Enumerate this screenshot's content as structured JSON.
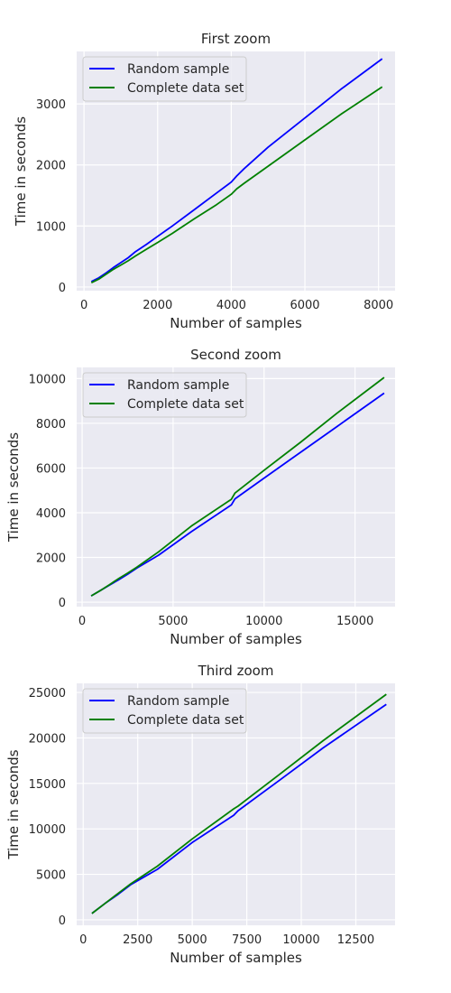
{
  "chart_data": [
    {
      "type": "line",
      "title": "First zoom",
      "xlabel": "Number of samples",
      "ylabel": "Time in seconds",
      "xlim": [
        -200,
        8450
      ],
      "ylim": [
        -60,
        3860
      ],
      "xticks": [
        0,
        2000,
        4000,
        6000,
        8000
      ],
      "yticks": [
        0,
        1000,
        2000,
        3000
      ],
      "grid": true,
      "legend_position": "top-left",
      "series": [
        {
          "name": "Random sample",
          "color": "#0000ff",
          "x": [
            200,
            400,
            600,
            800,
            1000,
            1200,
            1400,
            1700,
            2000,
            2400,
            3000,
            3600,
            4000,
            4150,
            4350,
            5000,
            6000,
            7000,
            8100
          ],
          "y": [
            90,
            150,
            230,
            320,
            400,
            480,
            580,
            700,
            830,
            1000,
            1270,
            1540,
            1720,
            1820,
            1940,
            2290,
            2770,
            3250,
            3740
          ]
        },
        {
          "name": "Complete data set",
          "color": "#008000",
          "x": [
            200,
            400,
            600,
            800,
            1000,
            1200,
            1400,
            1700,
            2000,
            2400,
            3000,
            3600,
            4000,
            4150,
            4350,
            5000,
            6000,
            7000,
            8100
          ],
          "y": [
            70,
            130,
            210,
            290,
            360,
            430,
            510,
            620,
            730,
            880,
            1120,
            1350,
            1520,
            1610,
            1700,
            1980,
            2410,
            2840,
            3280
          ]
        }
      ]
    },
    {
      "type": "line",
      "title": "Second zoom",
      "xlabel": "Number of samples",
      "ylabel": "Time in seconds",
      "xlim": [
        -300,
        17200
      ],
      "ylim": [
        -200,
        10500
      ],
      "xticks": [
        0,
        5000,
        10000,
        15000
      ],
      "yticks": [
        0,
        2000,
        4000,
        6000,
        8000,
        10000
      ],
      "grid": true,
      "legend_position": "top-left",
      "series": [
        {
          "name": "Random sample",
          "color": "#0000ff",
          "x": [
            500,
            1000,
            1500,
            2000,
            2500,
            3000,
            4200,
            6000,
            8200,
            8400,
            10000,
            12000,
            14000,
            16600
          ],
          "y": [
            280,
            520,
            760,
            1000,
            1250,
            1520,
            2100,
            3150,
            4350,
            4620,
            5550,
            6700,
            7850,
            9350
          ]
        },
        {
          "name": "Complete data set",
          "color": "#008000",
          "x": [
            500,
            1000,
            1500,
            2000,
            2500,
            3000,
            4200,
            6000,
            8200,
            8400,
            10000,
            12000,
            14000,
            16600
          ],
          "y": [
            280,
            520,
            780,
            1050,
            1300,
            1560,
            2250,
            3400,
            4600,
            4880,
            5900,
            7150,
            8450,
            10050
          ]
        }
      ]
    },
    {
      "type": "line",
      "title": "Third zoom",
      "xlabel": "Number of samples",
      "ylabel": "Time in seconds",
      "xlim": [
        -300,
        14300
      ],
      "ylim": [
        -600,
        26000
      ],
      "xticks": [
        0,
        2500,
        5000,
        7500,
        10000,
        12500
      ],
      "yticks": [
        0,
        5000,
        10000,
        15000,
        20000,
        25000
      ],
      "grid": true,
      "legend_position": "top-left",
      "series": [
        {
          "name": "Random sample",
          "color": "#0000ff",
          "x": [
            400,
            1000,
            1600,
            2200,
            3400,
            5000,
            6900,
            7100,
            9000,
            11000,
            13900
          ],
          "y": [
            700,
            1800,
            2800,
            3900,
            5550,
            8500,
            11500,
            12000,
            15350,
            18900,
            23700
          ]
        },
        {
          "name": "Complete data set",
          "color": "#008000",
          "x": [
            400,
            1000,
            1600,
            2200,
            3400,
            5000,
            6900,
            7100,
            9000,
            11000,
            13900
          ],
          "y": [
            700,
            1800,
            2900,
            4000,
            5900,
            8900,
            12200,
            12500,
            16000,
            19700,
            24800
          ]
        }
      ]
    }
  ]
}
